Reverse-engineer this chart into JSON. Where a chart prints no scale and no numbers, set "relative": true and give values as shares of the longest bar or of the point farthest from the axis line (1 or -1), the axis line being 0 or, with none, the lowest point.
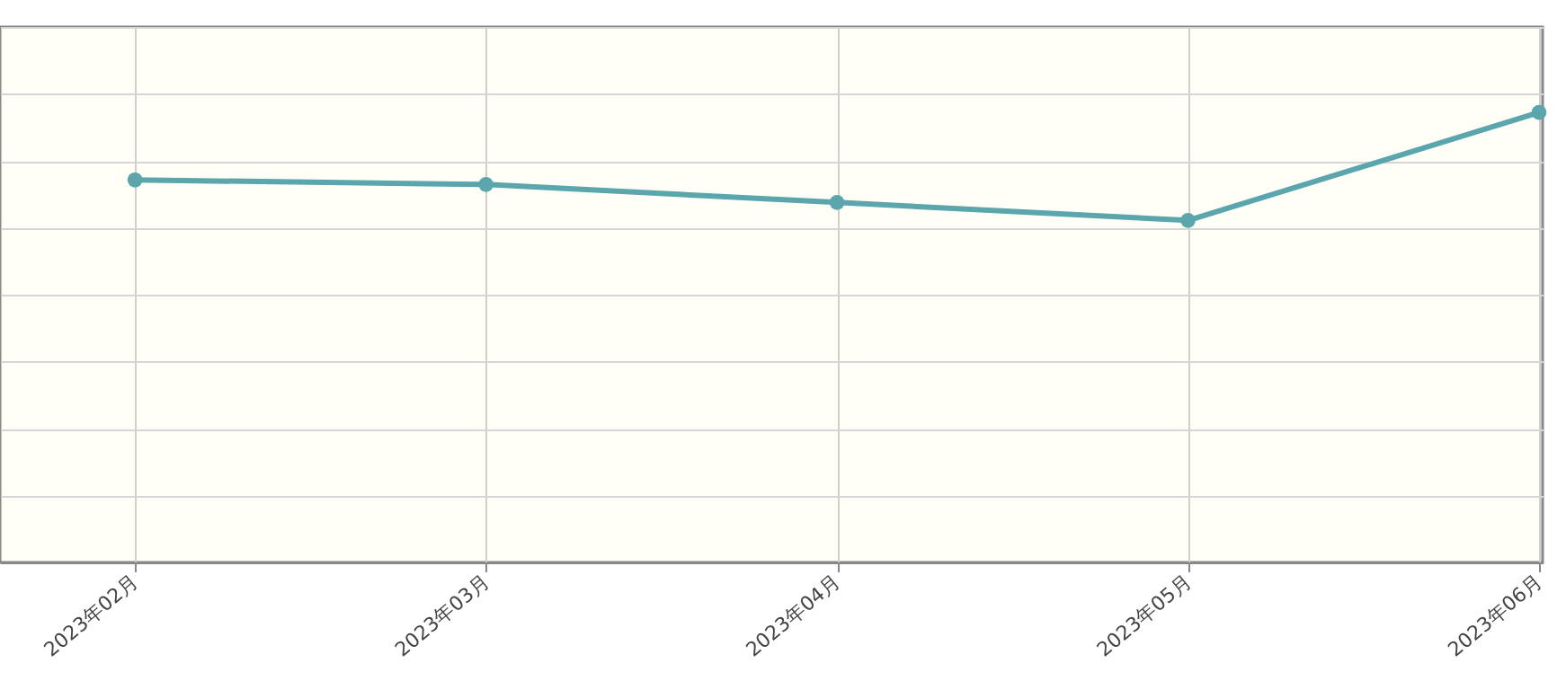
{
  "chart_data": {
    "type": "line",
    "relative": true,
    "categories": [
      "2023年02月",
      "2023年03月",
      "2023年04月",
      "2023年05月",
      "2023年06月"
    ],
    "series": [
      {
        "color": "#5ba5ad",
        "values": [
          0.85,
          0.84,
          0.8,
          0.76,
          1
        ]
      }
    ],
    "marker": "circle",
    "line_style": "solid",
    "grid": true
  }
}
